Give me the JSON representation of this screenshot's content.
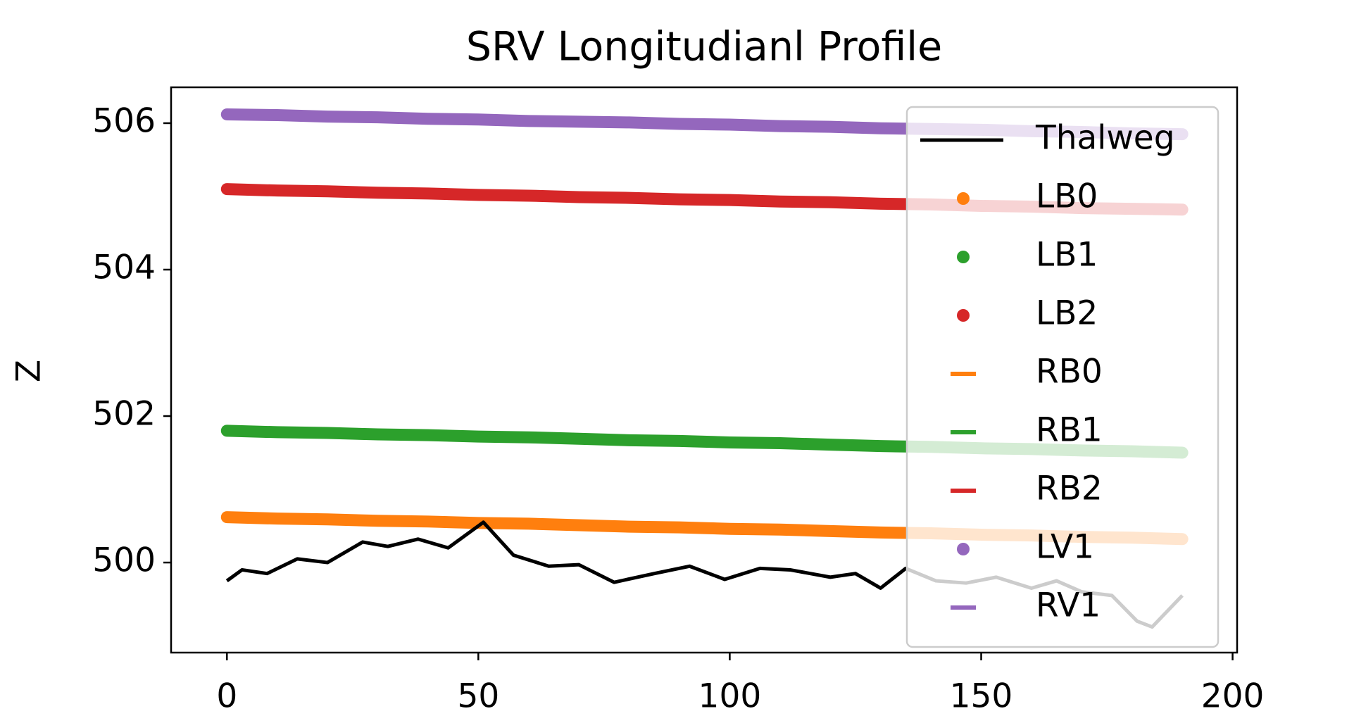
{
  "chart_data": {
    "type": "line",
    "title": "SRV Longitudianl Profile",
    "ylabel": "Z",
    "xlim": [
      -11.1,
      200.9
    ],
    "ylim": [
      498.77,
      506.49
    ],
    "xticks": [
      0,
      50,
      100,
      150,
      200
    ],
    "yticks": [
      500,
      502,
      504,
      506
    ],
    "legend": "upper right",
    "series": [
      {
        "name": "Thalweg",
        "color": "#000000",
        "marker": "line",
        "x": [
          0,
          3,
          8,
          14,
          20,
          27,
          32,
          38,
          44,
          51,
          57,
          64,
          70,
          77,
          85,
          92,
          99,
          106,
          112,
          120,
          125,
          130,
          135,
          141,
          147,
          153,
          160,
          165,
          170,
          176,
          181,
          184,
          190
        ],
        "values": [
          499.75,
          499.9,
          499.85,
          500.05,
          500.0,
          500.28,
          500.22,
          500.32,
          500.2,
          500.55,
          500.1,
          499.95,
          499.97,
          499.73,
          499.85,
          499.95,
          499.77,
          499.92,
          499.9,
          499.8,
          499.85,
          499.65,
          499.92,
          499.75,
          499.72,
          499.8,
          499.65,
          499.75,
          499.6,
          499.55,
          499.2,
          499.12,
          499.55
        ]
      },
      {
        "name": "LB0",
        "color": "#ff7f0e",
        "marker": "dot",
        "x": [
          0,
          10,
          20,
          30,
          40,
          50,
          60,
          70,
          80,
          90,
          100,
          110,
          120,
          130,
          140,
          150,
          160,
          170,
          180,
          190
        ],
        "values": [
          500.62,
          500.6,
          500.59,
          500.57,
          500.56,
          500.54,
          500.53,
          500.51,
          500.49,
          500.48,
          500.46,
          500.45,
          500.43,
          500.41,
          500.4,
          500.38,
          500.37,
          500.35,
          500.34,
          500.32
        ]
      },
      {
        "name": "LB1",
        "color": "#2ca02c",
        "marker": "dot",
        "x": [
          0,
          10,
          20,
          30,
          40,
          50,
          60,
          70,
          80,
          90,
          100,
          110,
          120,
          130,
          140,
          150,
          160,
          170,
          180,
          190
        ],
        "values": [
          501.8,
          501.78,
          501.77,
          501.75,
          501.74,
          501.72,
          501.71,
          501.69,
          501.67,
          501.66,
          501.64,
          501.63,
          501.61,
          501.59,
          501.58,
          501.56,
          501.55,
          501.53,
          501.52,
          501.5
        ]
      },
      {
        "name": "LB2",
        "color": "#d62728",
        "marker": "dot",
        "x": [
          0,
          10,
          20,
          30,
          40,
          50,
          60,
          70,
          80,
          90,
          100,
          110,
          120,
          130,
          140,
          150,
          160,
          170,
          180,
          190
        ],
        "values": [
          505.1,
          505.08,
          505.07,
          505.05,
          505.04,
          505.02,
          505.01,
          504.99,
          504.98,
          504.96,
          504.95,
          504.93,
          504.92,
          504.9,
          504.89,
          504.87,
          504.86,
          504.84,
          504.83,
          504.82
        ]
      },
      {
        "name": "RB0",
        "color": "#ff7f0e",
        "marker": "dash",
        "x": [
          0,
          10,
          20,
          30,
          40,
          50,
          60,
          70,
          80,
          90,
          100,
          110,
          120,
          130,
          140,
          150,
          160,
          170,
          180,
          190
        ],
        "values": [
          500.62,
          500.6,
          500.59,
          500.57,
          500.56,
          500.54,
          500.53,
          500.51,
          500.49,
          500.48,
          500.46,
          500.45,
          500.43,
          500.41,
          500.4,
          500.38,
          500.37,
          500.35,
          500.34,
          500.32
        ]
      },
      {
        "name": "RB1",
        "color": "#2ca02c",
        "marker": "dash",
        "x": [
          0,
          10,
          20,
          30,
          40,
          50,
          60,
          70,
          80,
          90,
          100,
          110,
          120,
          130,
          140,
          150,
          160,
          170,
          180,
          190
        ],
        "values": [
          501.8,
          501.78,
          501.77,
          501.75,
          501.74,
          501.72,
          501.71,
          501.69,
          501.67,
          501.66,
          501.64,
          501.63,
          501.61,
          501.59,
          501.58,
          501.56,
          501.55,
          501.53,
          501.52,
          501.5
        ]
      },
      {
        "name": "RB2",
        "color": "#d62728",
        "marker": "dash",
        "x": [
          0,
          10,
          20,
          30,
          40,
          50,
          60,
          70,
          80,
          90,
          100,
          110,
          120,
          130,
          140,
          150,
          160,
          170,
          180,
          190
        ],
        "values": [
          505.1,
          505.08,
          505.07,
          505.05,
          505.04,
          505.02,
          505.01,
          504.99,
          504.98,
          504.96,
          504.95,
          504.93,
          504.92,
          504.9,
          504.89,
          504.87,
          504.86,
          504.84,
          504.83,
          504.82
        ]
      },
      {
        "name": "LV1",
        "color": "#9467bd",
        "marker": "dot",
        "x": [
          0,
          10,
          20,
          30,
          40,
          50,
          60,
          70,
          80,
          90,
          100,
          110,
          120,
          130,
          140,
          150,
          160,
          170,
          180,
          190
        ],
        "values": [
          506.12,
          506.11,
          506.09,
          506.08,
          506.06,
          506.05,
          506.03,
          506.02,
          506.01,
          505.99,
          505.98,
          505.96,
          505.95,
          505.93,
          505.92,
          505.91,
          505.89,
          505.88,
          505.86,
          505.85
        ]
      },
      {
        "name": "RV1",
        "color": "#9467bd",
        "marker": "dash",
        "x": [
          0,
          10,
          20,
          30,
          40,
          50,
          60,
          70,
          80,
          90,
          100,
          110,
          120,
          130,
          140,
          150,
          160,
          170,
          180,
          190
        ],
        "values": [
          506.12,
          506.11,
          506.09,
          506.08,
          506.06,
          506.05,
          506.03,
          506.02,
          506.01,
          505.99,
          505.98,
          505.96,
          505.95,
          505.93,
          505.92,
          505.91,
          505.89,
          505.88,
          505.86,
          505.85
        ]
      }
    ]
  }
}
